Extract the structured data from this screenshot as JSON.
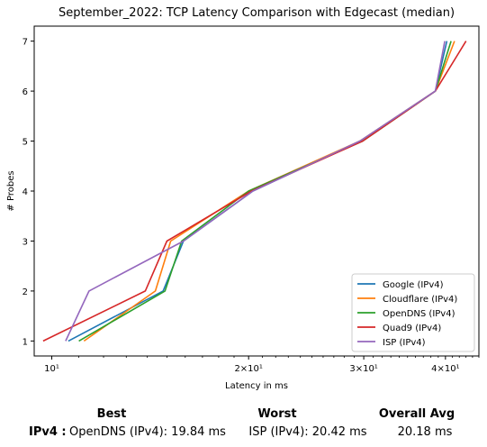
{
  "chart_data": {
    "type": "line",
    "title": "September_2022: TCP Latency Comparison with Edgecast (median)",
    "xlabel": "Latency in ms",
    "ylabel": "# Probes",
    "xscale": "log",
    "xlim": [
      9.4,
      45.0
    ],
    "ylim": [
      0.7,
      7.3
    ],
    "xticks": [
      {
        "value": 10,
        "label": "10¹"
      },
      {
        "value": 20,
        "label": "2×10¹"
      },
      {
        "value": 30,
        "label": "3×10¹"
      },
      {
        "value": 40,
        "label": "4×10¹"
      }
    ],
    "yticks": [
      "1",
      "2",
      "3",
      "4",
      "5",
      "6",
      "7"
    ],
    "grid": false,
    "legend": "bottom-right",
    "series": [
      {
        "name": "Google (IPv4)",
        "color": "#1f77b4",
        "x": [
          10.6,
          14.8,
          15.9,
          20.3,
          29.6,
          38.6,
          40.2
        ],
        "y": [
          1,
          2,
          3,
          4,
          5,
          6,
          7
        ]
      },
      {
        "name": "Cloudflare (IPv4)",
        "color": "#ff7f0e",
        "x": [
          11.2,
          14.4,
          15.2,
          20.0,
          29.6,
          38.6,
          41.3
        ],
        "y": [
          1,
          2,
          3,
          4,
          5,
          6,
          7
        ]
      },
      {
        "name": "OpenDNS (IPv4)",
        "color": "#2ca02c",
        "x": [
          11.0,
          14.9,
          15.8,
          20.0,
          29.9,
          38.6,
          40.8
        ],
        "y": [
          1,
          2,
          3,
          4,
          5,
          6,
          7
        ]
      },
      {
        "name": "Quad9 (IPv4)",
        "color": "#d62728",
        "x": [
          9.7,
          13.9,
          15.0,
          20.2,
          29.9,
          38.6,
          43.0
        ],
        "y": [
          1,
          2,
          3,
          4,
          5,
          6,
          7
        ]
      },
      {
        "name": "ISP (IPv4)",
        "color": "#9467bd",
        "x": [
          10.5,
          11.4,
          15.9,
          20.3,
          29.6,
          38.6,
          39.9
        ],
        "y": [
          1,
          2,
          3,
          4,
          5,
          6,
          7
        ]
      }
    ]
  },
  "summary": {
    "headers": {
      "best": "Best",
      "worst": "Worst",
      "avg": "Overall Avg"
    },
    "row_label": "IPv4 :",
    "best": "OpenDNS (IPv4): 19.84 ms",
    "worst": "ISP (IPv4): 20.42 ms",
    "avg": "20.18 ms"
  }
}
